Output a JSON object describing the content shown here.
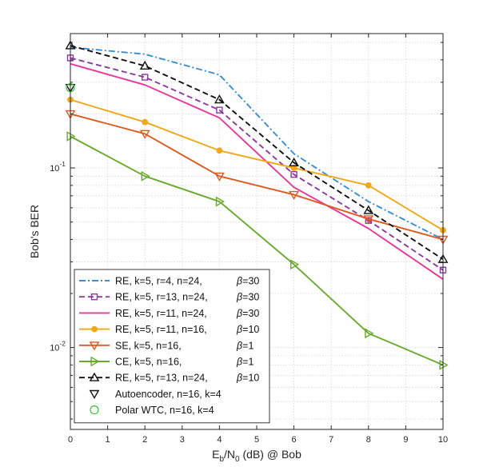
{
  "chart_data": {
    "type": "line",
    "title": "",
    "xlabel": "E_b/N_0 (dB) @ Bob",
    "xlabel_parts": {
      "main": "E",
      "sub1": "b",
      "mid": "/N",
      "sub2": "0",
      "tail": " (dB) @ Bob"
    },
    "ylabel": "Bob's BER",
    "x_scale": "linear",
    "y_scale": "log",
    "xlim": [
      0,
      10
    ],
    "ylim": [
      0.0035,
      0.56
    ],
    "x_ticks": [
      0,
      1,
      2,
      3,
      4,
      5,
      6,
      7,
      8,
      9,
      10
    ],
    "y_ticks": [
      {
        "value": 0.01,
        "base": "10",
        "exp": "-2"
      },
      {
        "value": 0.1,
        "base": "10",
        "exp": "-1"
      }
    ],
    "grid": true,
    "legend_position": "bottom-left",
    "series": [
      {
        "name": "RE, k=5, r=4, n=24,",
        "beta": "=30",
        "color": "#3a8fd0",
        "dash": "8 3 2 3",
        "marker": "none",
        "x": [
          0,
          2,
          4,
          6,
          8,
          10
        ],
        "y": [
          0.47,
          0.43,
          0.33,
          0.12,
          0.065,
          0.04
        ]
      },
      {
        "name": "RE, k=5, r=13, n=24,",
        "beta": "=30",
        "color": "#8b3a9e",
        "dash": "7 4",
        "marker": "square",
        "x": [
          0,
          2,
          4,
          6,
          8,
          10
        ],
        "y": [
          0.41,
          0.32,
          0.21,
          0.092,
          0.051,
          0.027
        ]
      },
      {
        "name": "RE, k=5, r=11, n=24,",
        "beta": "=30",
        "color": "#e8379a",
        "dash": "",
        "marker": "none",
        "x": [
          0,
          2,
          4,
          6,
          8,
          10
        ],
        "y": [
          0.38,
          0.29,
          0.19,
          0.078,
          0.046,
          0.024
        ]
      },
      {
        "name": "RE, k=5, r=11, n=16,",
        "beta": "=10",
        "color": "#f0a817",
        "dash": "",
        "marker": "dot",
        "x": [
          0,
          2,
          4,
          6,
          8,
          10
        ],
        "y": [
          0.24,
          0.18,
          0.125,
          0.1,
          0.08,
          0.045
        ]
      },
      {
        "name": "SE, k=5, n=16,",
        "beta": "=1",
        "color": "#dd5a22",
        "dash": "",
        "marker": "triangle-down",
        "x": [
          0,
          2,
          4,
          6,
          8,
          10
        ],
        "y": [
          0.2,
          0.155,
          0.09,
          0.071,
          0.052,
          0.04
        ]
      },
      {
        "name": "CE, k=5, n=16,",
        "beta": "=1",
        "color": "#6aaa2e",
        "dash": "",
        "marker": "triangle-right",
        "x": [
          0,
          2,
          4,
          6,
          8,
          10
        ],
        "y": [
          0.15,
          0.09,
          0.065,
          0.029,
          0.012,
          0.008
        ]
      },
      {
        "name": "RE, k=5, r=13, n=24,",
        "beta": "=10",
        "color": "#111111",
        "dash": "7 4",
        "marker": "triangle-up",
        "x": [
          0,
          2,
          4,
          6,
          8,
          10
        ],
        "y": [
          0.48,
          0.37,
          0.24,
          0.107,
          0.058,
          0.031
        ]
      },
      {
        "name": "Autoencoder, n=16, k=4",
        "beta": "",
        "color": "#111111",
        "dash": "none",
        "marker": "triangle-down",
        "x": [
          0
        ],
        "y": [
          0.28
        ]
      },
      {
        "name": "Polar WTC, n=16, k=4",
        "beta": "",
        "color": "#3fbf3f",
        "dash": "none",
        "marker": "circle",
        "x": [
          0
        ],
        "y": [
          0.28
        ]
      }
    ],
    "beta_symbol": "β"
  }
}
